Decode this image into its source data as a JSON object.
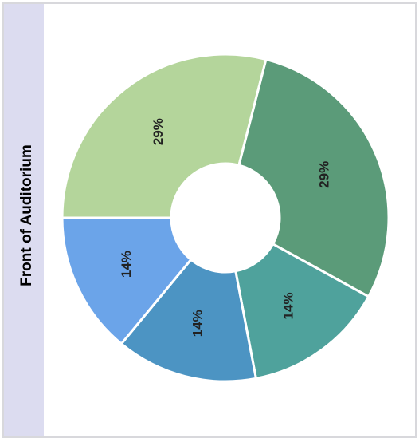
{
  "chart_data": {
    "type": "donut",
    "title": "Front of Auditorium",
    "values": [
      29,
      29,
      14,
      14,
      14
    ],
    "value_labels": [
      "29%",
      "29%",
      "14%",
      "14%",
      "14%"
    ],
    "colors": [
      "#b4d59b",
      "#5b9b79",
      "#4fa29c",
      "#4c94c3",
      "#6ba4e9"
    ]
  }
}
